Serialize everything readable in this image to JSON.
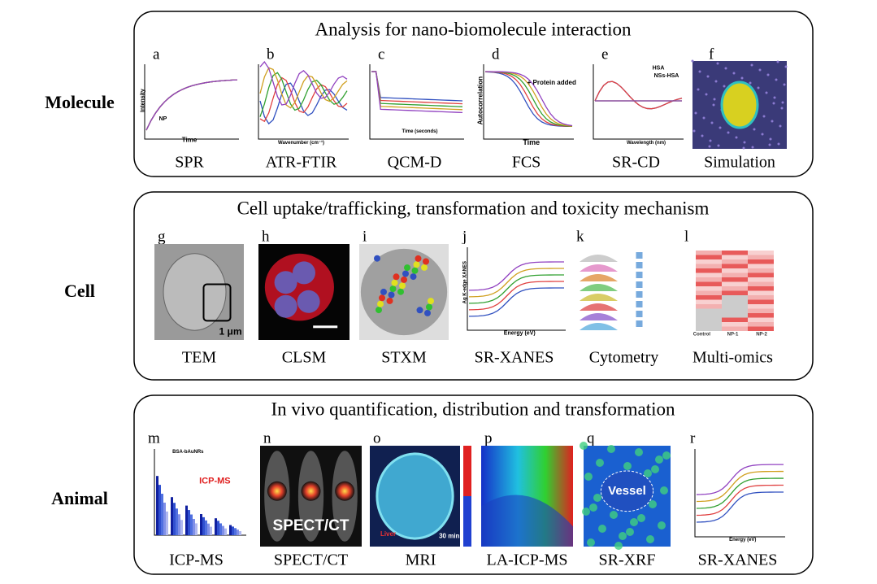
{
  "rows": [
    {
      "label": "Molecule",
      "title": "Analysis for nano-biomolecule interaction",
      "panels": [
        {
          "letter": "a",
          "caption": "SPR",
          "texts": [
            "Intensity",
            "Time",
            "NP"
          ]
        },
        {
          "letter": "b",
          "caption": "ATR-FTIR",
          "texts": [
            "Wavenumber (cm⁻¹)"
          ]
        },
        {
          "letter": "c",
          "caption": "QCM-D",
          "texts": [
            "Time (seconds)"
          ]
        },
        {
          "letter": "d",
          "caption": "FCS",
          "texts": [
            "Autocorrelation",
            "Time",
            "+ Protein added"
          ]
        },
        {
          "letter": "e",
          "caption": "SR-CD",
          "texts": [
            "HSA",
            "NSs-HSA",
            "Wavelength (nm)"
          ]
        },
        {
          "letter": "f",
          "caption": "Simulation",
          "texts": []
        }
      ]
    },
    {
      "label": "Cell",
      "title": "Cell uptake/trafficking, transformation and toxicity mechanism",
      "panels": [
        {
          "letter": "g",
          "caption": "TEM",
          "texts": [
            "1 μm"
          ]
        },
        {
          "letter": "h",
          "caption": "CLSM",
          "texts": []
        },
        {
          "letter": "i",
          "caption": "STXM",
          "texts": []
        },
        {
          "letter": "j",
          "caption": "SR-XANES",
          "texts": [
            "Ag K-edge XANES",
            "Energy (eV)"
          ]
        },
        {
          "letter": "k",
          "caption": "Cytometry",
          "texts": []
        },
        {
          "letter": "l",
          "caption": "Multi-omics",
          "texts": [
            "Control",
            "NP-1",
            "NP-2"
          ]
        }
      ]
    },
    {
      "label": "Animal",
      "title": "In vivo quantification, distribution and transformation",
      "panels": [
        {
          "letter": "m",
          "caption": "ICP-MS",
          "texts": [
            "ICP-MS",
            "BSA-bAuNRs"
          ]
        },
        {
          "letter": "n",
          "caption": "SPECT/CT",
          "texts": [
            "SPECT/CT"
          ]
        },
        {
          "letter": "o",
          "caption": "MRI",
          "texts": [
            "Liver",
            "30 mins"
          ]
        },
        {
          "letter": "p",
          "caption": "LA-ICP-MS",
          "texts": []
        },
        {
          "letter": "q",
          "caption": "SR-XRF",
          "texts": [
            "Vessel"
          ]
        },
        {
          "letter": "r",
          "caption": "SR-XANES",
          "texts": [
            "Energy (eV)"
          ]
        }
      ]
    }
  ]
}
